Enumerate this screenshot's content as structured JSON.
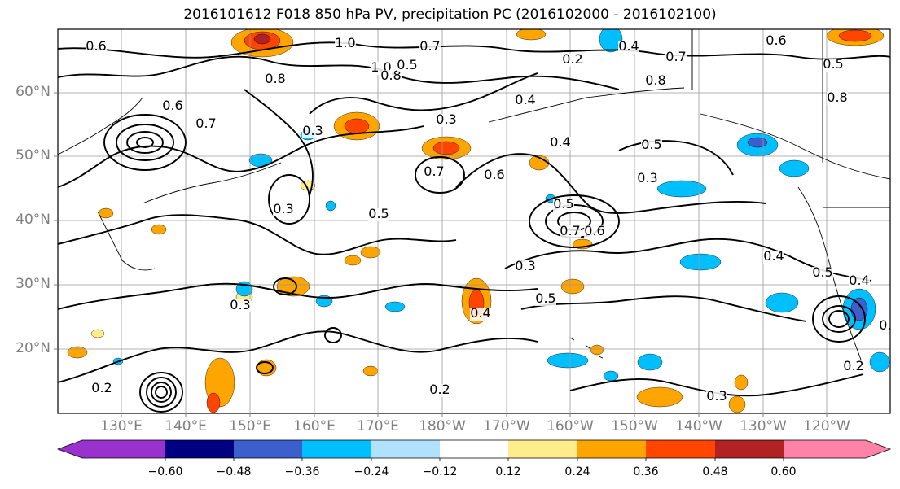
{
  "title": "2016101612 F018 850 hPa PV, precipitation PC (2016102000 - 2016102100)",
  "lat_labels": [
    "60°N",
    "50°N",
    "40°N",
    "30°N",
    "20°N"
  ],
  "lon_labels": [
    "130°E",
    "140°E",
    "150°E",
    "160°E",
    "170°E",
    "180°W",
    "170°W",
    "160°W",
    "150°W",
    "140°W",
    "130°W",
    "120°W"
  ],
  "colorbar": {
    "tick_labels": [
      "−0.60",
      "−0.48",
      "−0.36",
      "−0.24",
      "−0.12",
      "0.12",
      "0.24",
      "0.36",
      "0.48",
      "0.60"
    ],
    "colors": [
      "#9932cc",
      "#000080",
      "#3b5fcd",
      "#00bfff",
      "#b0e2ff",
      "#ffffff",
      "#ffec8b",
      "#ffa500",
      "#ff4500",
      "#b22222",
      "#ff83a8"
    ]
  },
  "contour_labels": [
    "0.6",
    "1.0",
    "0.7",
    "0.8",
    "0.4",
    "0.2",
    "0.6",
    "0.5",
    "0.8",
    "0.3",
    "0.6",
    "0.7",
    "0.5",
    "0.3",
    "0.4",
    "0.5",
    "0.3",
    "0.7",
    "0.6",
    "0.5",
    "0.7",
    "0.6",
    "0.3",
    "0.4",
    "0.5",
    "0.3",
    "0.5",
    "0.2",
    "0.2",
    "0.3",
    "0.4",
    "0.2",
    "0.3",
    "0.8",
    "1.0",
    "0.8",
    "0.7",
    "0.4",
    "0.5",
    "0.4",
    "0.2"
  ],
  "fill_colors": {
    "positive_light": "#ffec8b",
    "positive_mid": "#ffa500",
    "positive_strong": "#ff4500",
    "positive_max": "#b22222",
    "negative_light": "#b0e2ff",
    "negative_mid": "#00bfff",
    "negative_strong": "#3b5fcd"
  }
}
